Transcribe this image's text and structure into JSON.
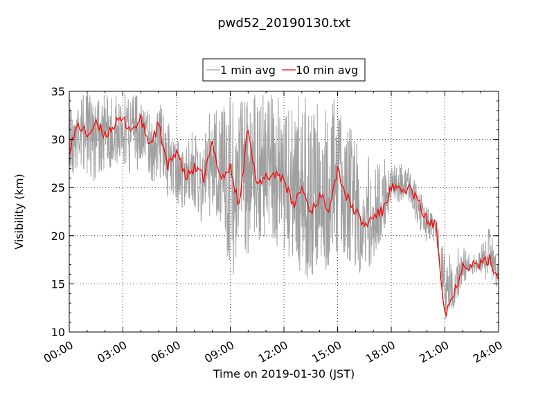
{
  "chart_data": {
    "type": "line",
    "title": "pwd52_20190130.txt",
    "xlabel": "Time on 2019-01-30 (JST)",
    "ylabel": "Visibility (km)",
    "xlim": [
      "00:00",
      "24:00"
    ],
    "ylim": [
      10,
      35
    ],
    "x_ticks": [
      "00:00",
      "03:00",
      "06:00",
      "09:00",
      "12:00",
      "15:00",
      "18:00",
      "21:00",
      "24:00"
    ],
    "y_ticks": [
      "10",
      "15",
      "20",
      "25",
      "30",
      "35"
    ],
    "grid": true,
    "legend_position": "top-center",
    "colors": {
      "1 min avg": "#a0a0a0",
      "10 min avg": "#ff0000"
    },
    "series": [
      {
        "name": "1 min avg",
        "x": [
          "00:00",
          "00:30",
          "01:00",
          "01:30",
          "02:00",
          "02:30",
          "03:00",
          "03:30",
          "04:00",
          "04:30",
          "05:00",
          "05:30",
          "06:00",
          "06:30",
          "07:00",
          "07:30",
          "08:00",
          "08:30",
          "09:00",
          "09:30",
          "10:00",
          "10:30",
          "11:00",
          "11:30",
          "12:00",
          "12:30",
          "13:00",
          "13:30",
          "14:00",
          "14:30",
          "15:00",
          "15:30",
          "16:00",
          "16:30",
          "17:00",
          "17:30",
          "18:00",
          "18:30",
          "19:00",
          "19:30",
          "20:00",
          "20:30",
          "21:00",
          "21:30",
          "22:00",
          "22:30",
          "23:00",
          "23:30",
          "24:00"
        ],
        "values": [
          29,
          31.5,
          31,
          32,
          31,
          30.5,
          32,
          31.5,
          32.5,
          30,
          31,
          28,
          28.5,
          26.5,
          27,
          25.5,
          28,
          25.5,
          27,
          24,
          30,
          26,
          26,
          27,
          25.5,
          24,
          24.5,
          22,
          24,
          23,
          26,
          24,
          22.5,
          21,
          21,
          22.5,
          25,
          25,
          25,
          23.5,
          21.5,
          21,
          13,
          14,
          17,
          17,
          17,
          17.5,
          15.5
        ],
        "range_low": [
          25,
          27,
          26,
          25.5,
          27,
          27,
          27,
          26,
          27,
          25,
          26,
          24,
          23,
          22,
          22,
          21,
          22,
          20,
          15,
          17,
          18,
          19,
          20,
          19,
          18,
          17,
          16,
          15,
          17,
          16,
          18,
          17,
          16,
          16,
          17,
          20,
          23,
          23,
          23,
          21,
          19,
          19,
          11,
          12,
          15,
          16,
          16,
          15,
          14.5
        ],
        "range_high": [
          35,
          35,
          35,
          35,
          35,
          35,
          35,
          35,
          35,
          33,
          35,
          32,
          30,
          29,
          32,
          31,
          34,
          33,
          35,
          35,
          35,
          35,
          35,
          35,
          34,
          35,
          35,
          35,
          34,
          35,
          35,
          33,
          31,
          29,
          30,
          28,
          28,
          27.5,
          27,
          25,
          23,
          22,
          18,
          19,
          19,
          18.5,
          19,
          21,
          17
        ]
      },
      {
        "name": "10 min avg",
        "x": [
          "00:00",
          "00:30",
          "01:00",
          "01:30",
          "02:00",
          "02:30",
          "03:00",
          "03:30",
          "04:00",
          "04:30",
          "05:00",
          "05:30",
          "06:00",
          "06:30",
          "07:00",
          "07:30",
          "08:00",
          "08:30",
          "09:00",
          "09:30",
          "10:00",
          "10:30",
          "11:00",
          "11:30",
          "12:00",
          "12:30",
          "13:00",
          "13:30",
          "14:00",
          "14:30",
          "15:00",
          "15:30",
          "16:00",
          "16:30",
          "17:00",
          "17:30",
          "18:00",
          "18:30",
          "19:00",
          "19:30",
          "20:00",
          "20:30",
          "21:00",
          "21:30",
          "22:00",
          "22:30",
          "23:00",
          "23:30",
          "24:00"
        ],
        "values": [
          29,
          31.5,
          30.5,
          31.5,
          30.5,
          31.5,
          32,
          31,
          32,
          29.5,
          31.5,
          27,
          29,
          26,
          27,
          26,
          29.5,
          26,
          27,
          23,
          31.5,
          25,
          26,
          26.5,
          26,
          23,
          25,
          22.5,
          24,
          23,
          27,
          24,
          22.5,
          21,
          22,
          22.5,
          25,
          24.5,
          25,
          23.5,
          21.5,
          21,
          12,
          14,
          17,
          17,
          17,
          17.5,
          15.5
        ]
      }
    ]
  }
}
